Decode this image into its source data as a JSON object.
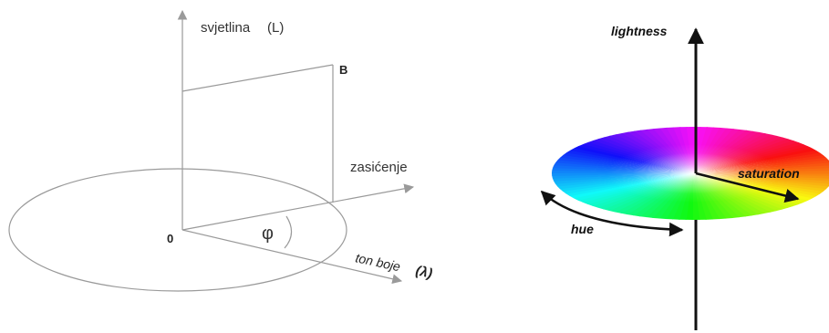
{
  "left_diagram": {
    "axes": {
      "lightness": "svjetlina",
      "lightness_symbol": "(L)",
      "saturation": "zasićenje",
      "hue": "ton boje",
      "hue_symbol": "(λ)"
    },
    "origin": "0",
    "point": "B",
    "angle": "φ",
    "line_color": "#9a9a9a"
  },
  "right_diagram": {
    "lightness_label": "lightness",
    "saturation_label": "saturation",
    "hue_label": "hue",
    "axis_color": "#111111"
  }
}
